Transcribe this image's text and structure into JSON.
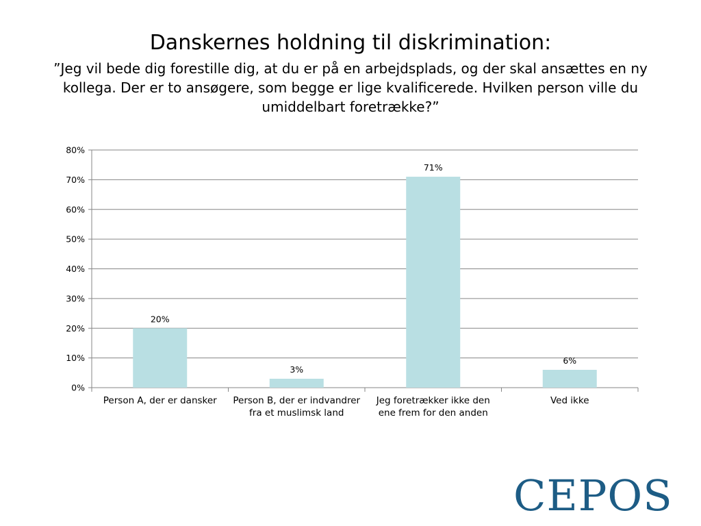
{
  "slide": {
    "title": "Danskernes holdning til diskrimination:",
    "subtitle": "”Jeg vil bede dig forestille dig, at du er på en arbejdsplads, og der skal ansættes en ny kollega. Der er to ansøgere, som begge er lige kvalificerede. Hvilken person ville du umiddelbart foretrække?”"
  },
  "logo": {
    "text": "CEPOS"
  },
  "chart_data": {
    "type": "bar",
    "categories": [
      "Person A, der er dansker",
      "Person B, der er indvandrer fra et muslimsk land",
      "Jeg foretrækker ikke den ene frem for den anden",
      "Ved ikke"
    ],
    "category_lines": [
      [
        "Person A, der er dansker"
      ],
      [
        "Person B, der er indvandrer",
        "fra et muslimsk land"
      ],
      [
        "Jeg foretrækker ikke den",
        "ene frem for den anden"
      ],
      [
        "Ved ikke"
      ]
    ],
    "values": [
      20,
      3,
      71,
      6
    ],
    "data_labels": [
      "20%",
      "3%",
      "71%",
      "6%"
    ],
    "ylim": [
      0,
      80
    ],
    "yticks": [
      0,
      10,
      20,
      30,
      40,
      50,
      60,
      70,
      80
    ],
    "ytick_labels": [
      "0%",
      "10%",
      "20%",
      "30%",
      "40%",
      "50%",
      "60%",
      "70%",
      "80%"
    ],
    "grid": true,
    "legend": "none",
    "bar_color": "#b9dfe3",
    "grid_color": "#868686"
  }
}
